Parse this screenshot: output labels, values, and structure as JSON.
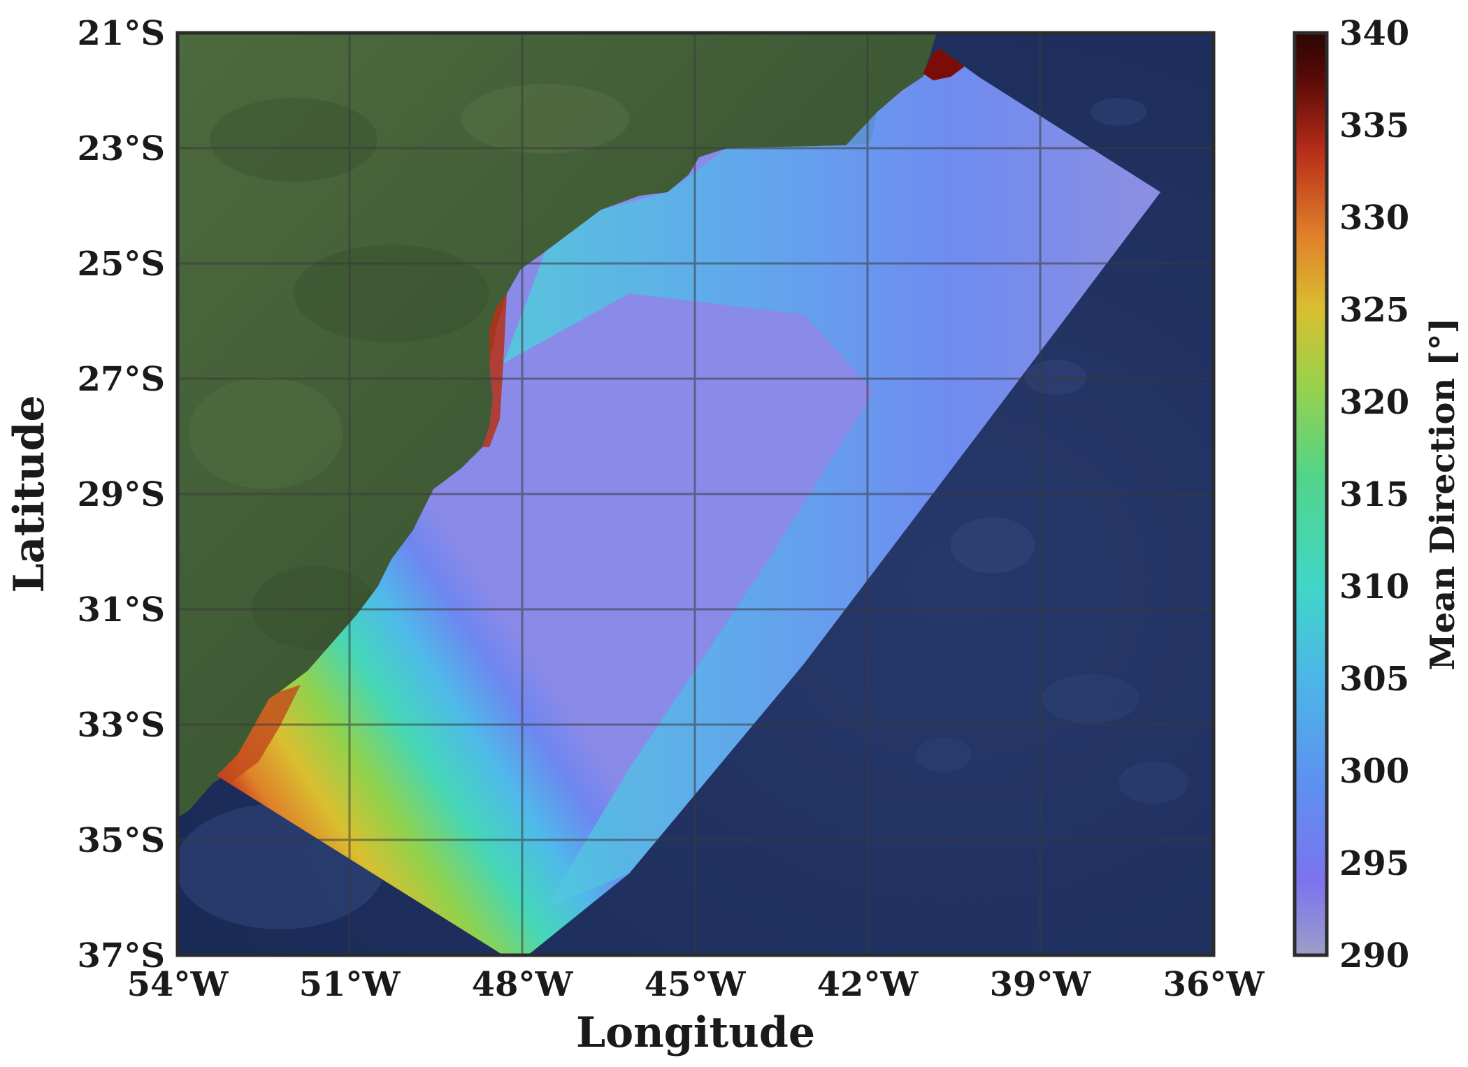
{
  "map": {
    "x_axis": {
      "label": "Longitude",
      "ticks": [
        "54°W",
        "51°W",
        "48°W",
        "45°W",
        "42°W",
        "39°W",
        "36°W"
      ],
      "range_deg": [
        -54,
        -36
      ]
    },
    "y_axis": {
      "label": "Latitude",
      "ticks": [
        "21°S",
        "23°S",
        "25°S",
        "27°S",
        "29°S",
        "31°S",
        "33°S",
        "35°S",
        "37°S"
      ],
      "range_deg": [
        -37,
        -21
      ]
    },
    "grid": true,
    "basemap": "satellite imagery (land green, ocean dark blue bathymetry)",
    "colors": {
      "land": "#3f5a35",
      "ocean": "#1f3262",
      "grid": "#3a3a3a",
      "frame": "#2b2b2b"
    }
  },
  "colorbar": {
    "label": "Mean Direction [°]",
    "ticks": [
      "340",
      "335",
      "330",
      "325",
      "320",
      "315",
      "310",
      "305",
      "300",
      "295",
      "290"
    ],
    "range": [
      290,
      340
    ],
    "colormap": "turbo-like",
    "stops": [
      "#9d9ec8",
      "#7c73ee",
      "#5f8ff0",
      "#4cb6e8",
      "#40d6c8",
      "#52d488",
      "#9ad14a",
      "#d9bf30",
      "#e0812a",
      "#b92e1a",
      "#5a0a06",
      "#2a0604"
    ]
  }
}
